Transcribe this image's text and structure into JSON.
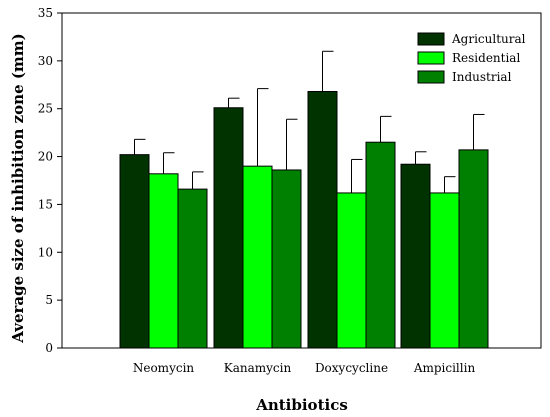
{
  "chart_data": {
    "type": "bar",
    "xlabel": "Antibiotics",
    "ylabel": "Average size of inhibition zone (mm)",
    "ylim": [
      0,
      35
    ],
    "yticks": [
      0,
      5,
      10,
      15,
      20,
      25,
      30,
      35
    ],
    "categories": [
      "Neomycin",
      "Kanamycin",
      "Doxycycline",
      "Ampicillin"
    ],
    "legend_position": "top-right",
    "grid": false,
    "series": [
      {
        "name": "Agricultural",
        "color": "#003300",
        "values": [
          20.2,
          25.1,
          26.8,
          19.2
        ],
        "errors": [
          1.6,
          1.0,
          4.2,
          1.3
        ]
      },
      {
        "name": "Residential",
        "color": "#00ff00",
        "values": [
          18.2,
          19.0,
          16.2,
          16.2
        ],
        "errors": [
          2.2,
          8.1,
          3.5,
          1.7
        ]
      },
      {
        "name": "Industrial",
        "color": "#008000",
        "values": [
          16.6,
          18.6,
          21.5,
          20.7
        ],
        "errors": [
          1.8,
          5.3,
          2.7,
          3.7
        ]
      }
    ]
  }
}
